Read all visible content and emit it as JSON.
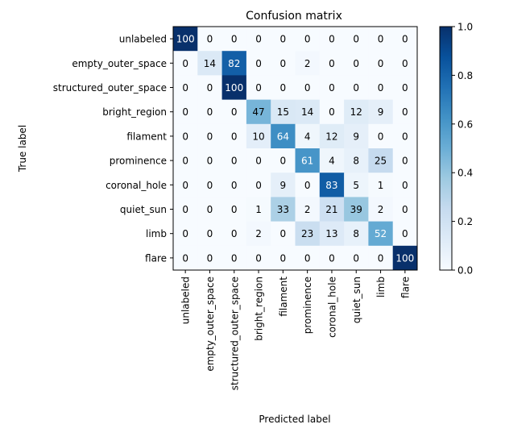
{
  "chart_data": {
    "type": "heatmap",
    "title": "Confusion matrix",
    "xlabel": "Predicted label",
    "ylabel": "True label",
    "labels": [
      "unlabeled",
      "empty_outer_space",
      "structured_outer_space",
      "bright_region",
      "filament",
      "prominence",
      "coronal_hole",
      "quiet_sun",
      "limb",
      "flare"
    ],
    "matrix": [
      [
        100,
        0,
        0,
        0,
        0,
        0,
        0,
        0,
        0,
        0
      ],
      [
        0,
        14,
        82,
        0,
        0,
        2,
        0,
        0,
        0,
        0
      ],
      [
        0,
        0,
        100,
        0,
        0,
        0,
        0,
        0,
        0,
        0
      ],
      [
        0,
        0,
        0,
        47,
        15,
        14,
        0,
        12,
        9,
        0
      ],
      [
        0,
        0,
        0,
        10,
        64,
        4,
        12,
        9,
        0,
        0
      ],
      [
        0,
        0,
        0,
        0,
        0,
        61,
        4,
        8,
        25,
        0
      ],
      [
        0,
        0,
        0,
        0,
        9,
        0,
        83,
        5,
        1,
        0
      ],
      [
        0,
        0,
        0,
        1,
        33,
        2,
        21,
        39,
        2,
        0
      ],
      [
        0,
        0,
        0,
        2,
        0,
        23,
        13,
        8,
        52,
        0
      ],
      [
        0,
        0,
        0,
        0,
        0,
        0,
        0,
        0,
        0,
        100
      ]
    ],
    "colormap": "Blues",
    "colorbar": {
      "range": [
        0.0,
        1.0
      ],
      "ticks": [
        "0.0",
        "0.2",
        "0.4",
        "0.6",
        "0.8",
        "1.0"
      ]
    }
  }
}
